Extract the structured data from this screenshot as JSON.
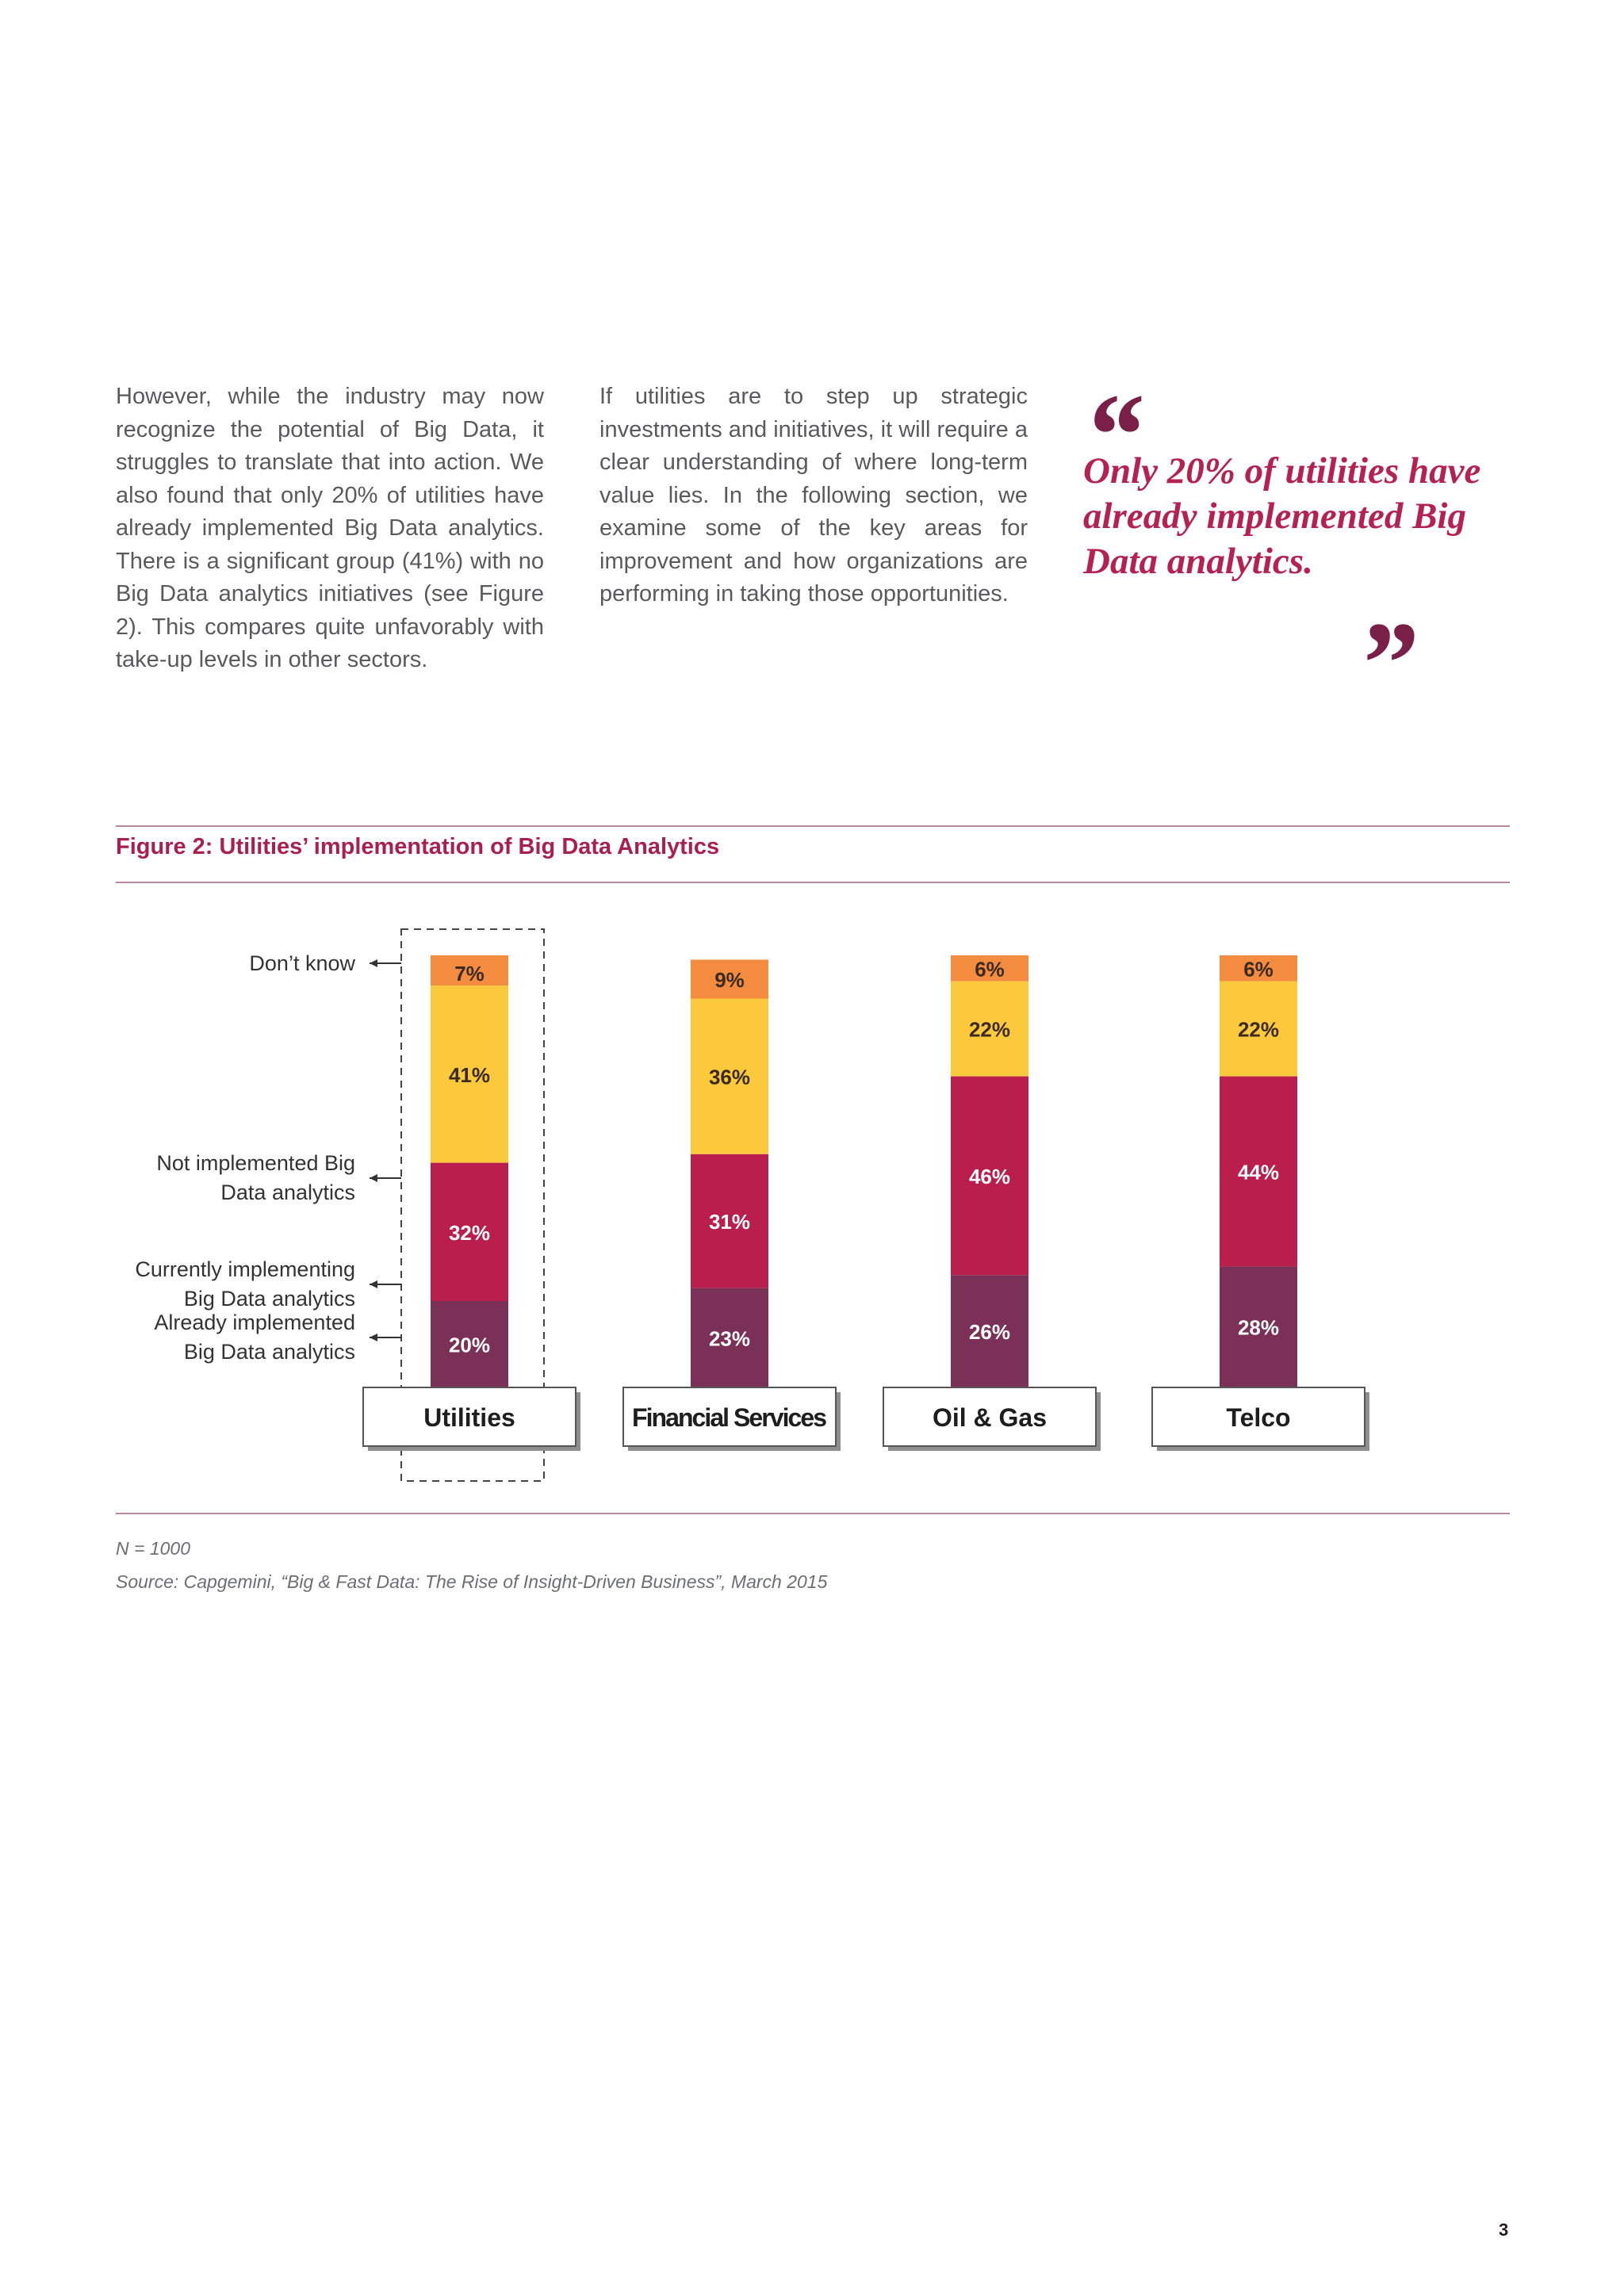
{
  "body": {
    "col1": "However, while the industry may now recognize the potential of Big Data, it struggles to translate that into action. We also found that only 20% of utilities have already implemented Big Data analytics. There is a significant group (41%) with no Big Data analytics initiatives (see Figure 2). This compares quite unfavorably with take-up levels in other sectors.",
    "col2": "If utilities are to step up strategic investments and initiatives, it will require a clear understanding of where long-term value lies. In the following section, we examine some of the key areas for improvement and how organizations are performing in taking those opportunities."
  },
  "quote": {
    "open": "“",
    "text": "Only 20% of utilities have already implemented Big Data analytics.",
    "close": "”"
  },
  "figure": {
    "title": "Figure 2: Utilities’ implementation of Big Data Analytics"
  },
  "chart_data": {
    "type": "bar",
    "stacked": true,
    "highlighted_category": "Utilities",
    "categories": [
      "Utilities",
      "Financial Services",
      "Oil & Gas",
      "Telco"
    ],
    "series": [
      {
        "name": "Already implemented Big Data analytics",
        "values": [
          20,
          23,
          26,
          28
        ],
        "color": "#7b3058"
      },
      {
        "name": "Currently implementing Big Data analytics",
        "values": [
          32,
          31,
          46,
          44
        ],
        "color": "#b91e4c"
      },
      {
        "name": "Not implemented Big Data analytics",
        "values": [
          41,
          36,
          22,
          22
        ],
        "color": "#fcc93d"
      },
      {
        "name": "Don't know",
        "values": [
          7,
          9,
          6,
          6
        ],
        "color": "#f48c3f"
      }
    ],
    "value_labels": [
      [
        "20%",
        "23%",
        "26%",
        "28%"
      ],
      [
        "32%",
        "31%",
        "46%",
        "44%"
      ],
      [
        "41%",
        "36%",
        "22%",
        "22%"
      ],
      [
        "7%",
        "9%",
        "6%",
        "6%"
      ]
    ],
    "legend_lines": [
      [
        "Already implemented",
        "Big Data analytics"
      ],
      [
        "Currently  implementing",
        "Big Data analytics"
      ],
      [
        "Not implemented Big",
        "Data analytics"
      ],
      [
        "Don’t know"
      ]
    ],
    "legend_placement": "left"
  },
  "footnotes": {
    "n": "N = 1000",
    "source": "Source: Capgemini, “Big & Fast Data: The Rise of Insight-Driven Business”, March 2015"
  },
  "page_number": "3"
}
